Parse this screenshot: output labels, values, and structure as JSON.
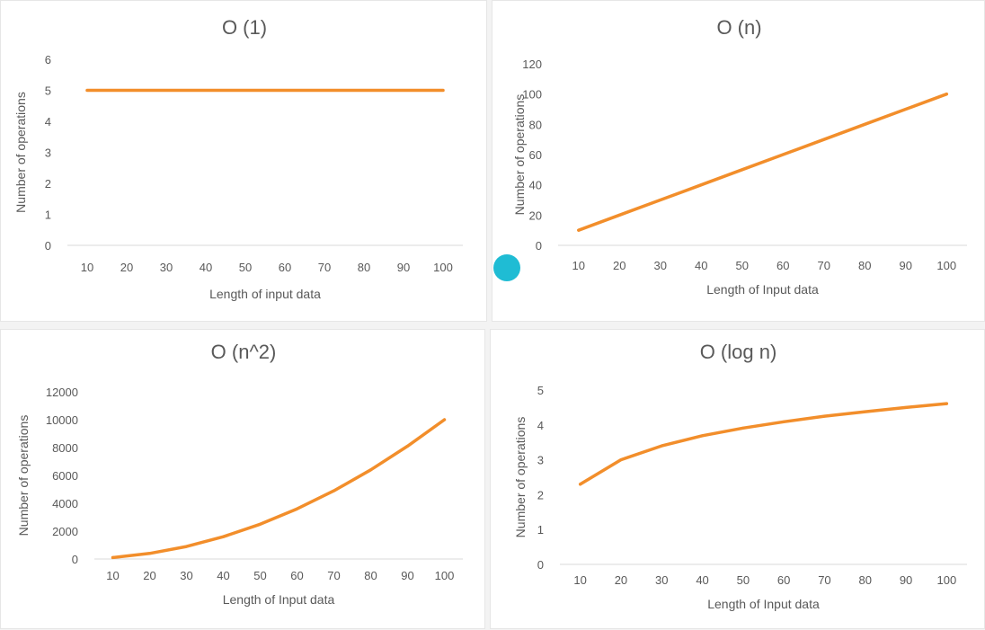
{
  "colors": {
    "line": "#f28e2b",
    "text": "#595959",
    "axis": "#d9d9d9",
    "cursor": "#1fbcd4"
  },
  "chart_data": [
    {
      "type": "line",
      "title": "O (1)",
      "xlabel": "Length of input data",
      "ylabel": "Number of operations",
      "x": [
        10,
        20,
        30,
        40,
        50,
        60,
        70,
        80,
        90,
        100
      ],
      "series": [
        {
          "values": [
            5,
            5,
            5,
            5,
            5,
            5,
            5,
            5,
            5,
            5
          ]
        }
      ],
      "ylim": [
        0,
        6
      ],
      "yticks": [
        0,
        1,
        2,
        3,
        4,
        5,
        6
      ],
      "grid": false
    },
    {
      "type": "line",
      "title": "O (n)",
      "xlabel": "Length of Input data",
      "ylabel": "Number of operations",
      "x": [
        10,
        20,
        30,
        40,
        50,
        60,
        70,
        80,
        90,
        100
      ],
      "series": [
        {
          "values": [
            10,
            20,
            30,
            40,
            50,
            60,
            70,
            80,
            90,
            100
          ]
        }
      ],
      "ylim": [
        0,
        120
      ],
      "yticks": [
        0,
        20,
        40,
        60,
        80,
        100,
        120
      ],
      "grid": false
    },
    {
      "type": "line",
      "title": "O (n^2)",
      "xlabel": "Length of Input data",
      "ylabel": "Number of operations",
      "x": [
        10,
        20,
        30,
        40,
        50,
        60,
        70,
        80,
        90,
        100
      ],
      "series": [
        {
          "values": [
            100,
            400,
            900,
            1600,
            2500,
            3600,
            4900,
            6400,
            8100,
            10000
          ]
        }
      ],
      "ylim": [
        0,
        12000
      ],
      "yticks": [
        0,
        2000,
        4000,
        6000,
        8000,
        10000,
        12000
      ],
      "grid": false
    },
    {
      "type": "line",
      "title": "O (log n)",
      "xlabel": "Length of Input data",
      "ylabel": "Number of operations",
      "x": [
        10,
        20,
        30,
        40,
        50,
        60,
        70,
        80,
        90,
        100
      ],
      "series": [
        {
          "values": [
            2.3,
            3.0,
            3.4,
            3.69,
            3.91,
            4.09,
            4.25,
            4.38,
            4.5,
            4.61
          ]
        }
      ],
      "ylim": [
        0,
        5
      ],
      "yticks": [
        0,
        1,
        2,
        3,
        4,
        5
      ],
      "grid": false
    }
  ]
}
